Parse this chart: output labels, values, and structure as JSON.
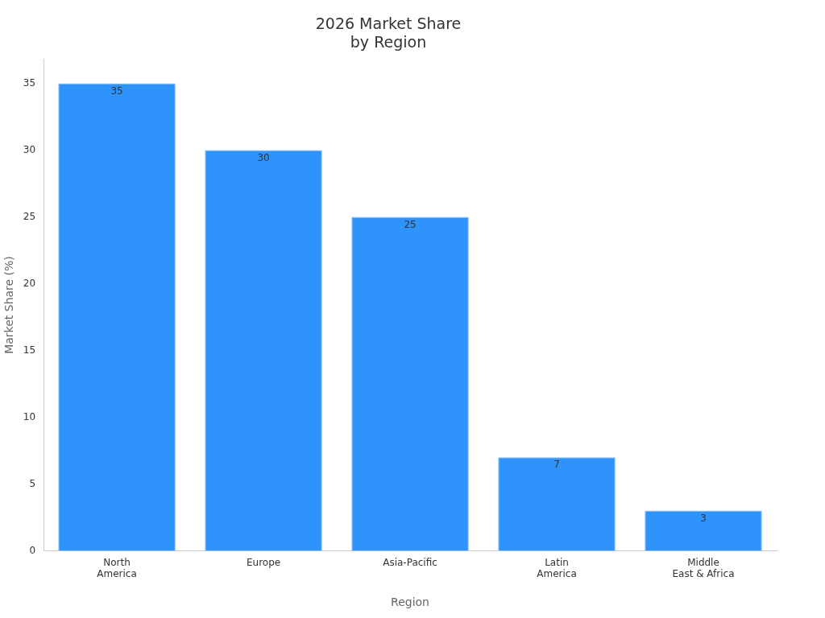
{
  "chart_data": {
    "type": "bar",
    "title": "2026 Market Share by Region",
    "xlabel": "Region",
    "ylabel": "Market Share (%)",
    "categories": [
      "North America",
      "Europe",
      "Asia-Pacific",
      "Latin America",
      "Middle East & Africa"
    ],
    "values": [
      35,
      30,
      25,
      7,
      3
    ],
    "color": "#2e93fa",
    "ylim": [
      0,
      36.8
    ],
    "yticks": [
      0,
      5,
      10,
      15,
      20,
      25,
      30,
      35
    ],
    "grid": false,
    "legend": false,
    "data_labels": true
  }
}
